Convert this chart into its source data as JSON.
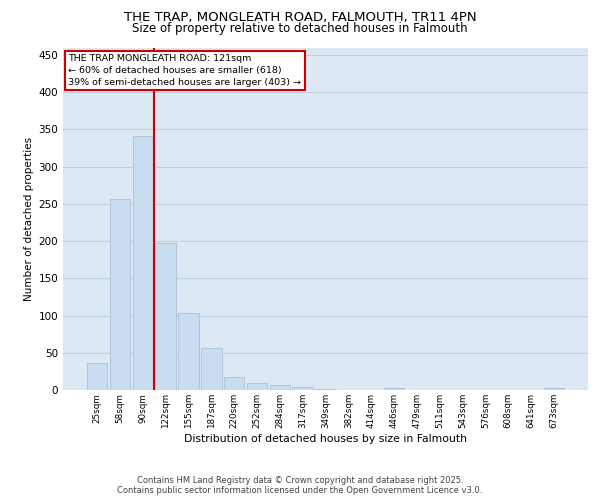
{
  "title_line1": "THE TRAP, MONGLEATH ROAD, FALMOUTH, TR11 4PN",
  "title_line2": "Size of property relative to detached houses in Falmouth",
  "xlabel": "Distribution of detached houses by size in Falmouth",
  "ylabel": "Number of detached properties",
  "categories": [
    "25sqm",
    "58sqm",
    "90sqm",
    "122sqm",
    "155sqm",
    "187sqm",
    "220sqm",
    "252sqm",
    "284sqm",
    "317sqm",
    "349sqm",
    "382sqm",
    "414sqm",
    "446sqm",
    "479sqm",
    "511sqm",
    "543sqm",
    "576sqm",
    "608sqm",
    "641sqm",
    "673sqm"
  ],
  "values": [
    36,
    256,
    341,
    197,
    104,
    57,
    18,
    10,
    7,
    4,
    1,
    0,
    0,
    3,
    0,
    0,
    0,
    0,
    0,
    0,
    3
  ],
  "bar_color": "#c9ddf0",
  "bar_edge_color": "#a8c0d8",
  "grid_color": "#c0d0e0",
  "bg_color": "#dce8f4",
  "vline_color": "#cc0000",
  "vline_x": 2.5,
  "annotation_text": "THE TRAP MONGLEATH ROAD: 121sqm\n← 60% of detached houses are smaller (618)\n39% of semi-detached houses are larger (403) →",
  "annotation_box_color": "#ffffff",
  "annotation_box_edge": "#cc0000",
  "ylim": [
    0,
    460
  ],
  "yticks": [
    0,
    50,
    100,
    150,
    200,
    250,
    300,
    350,
    400,
    450
  ],
  "footer_line1": "Contains HM Land Registry data © Crown copyright and database right 2025.",
  "footer_line2": "Contains public sector information licensed under the Open Government Licence v3.0."
}
